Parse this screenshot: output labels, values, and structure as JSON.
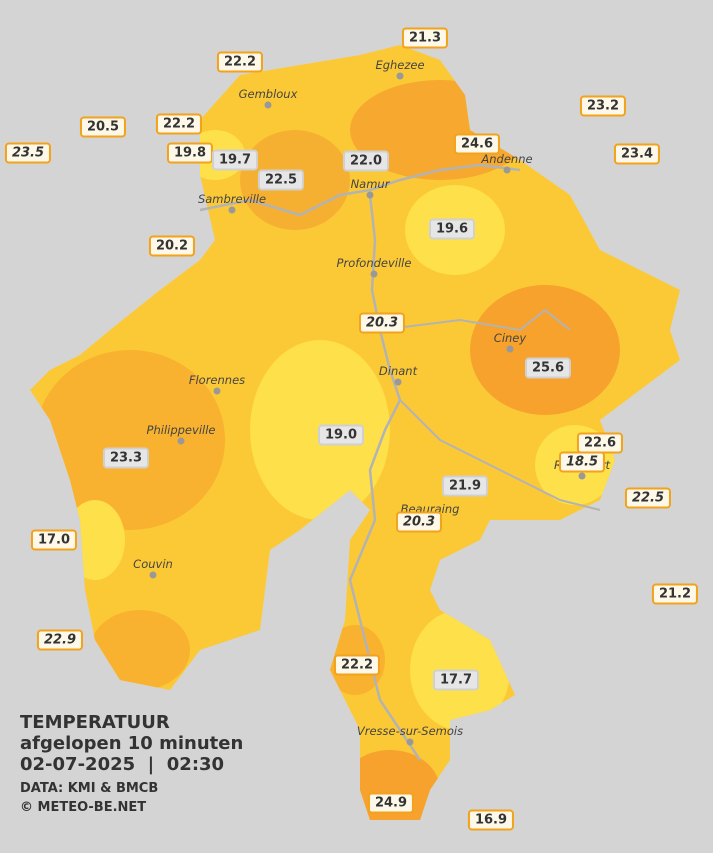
{
  "towns": [
    "Eghezee",
    "Gembloux",
    "Andenne",
    "Namur",
    "Sambreville",
    "Profondeville",
    "Ciney",
    "Dinant",
    "Florennes",
    "Philippeville",
    "Rochefort",
    "Beauraing",
    "Couvin",
    "Vresse-sur-Semois"
  ],
  "stations": [
    {
      "value": "21.3",
      "italic": false
    },
    {
      "value": "22.2",
      "italic": false
    },
    {
      "value": "20.5",
      "italic": false
    },
    {
      "value": "22.2",
      "italic": false
    },
    {
      "value": "23.2",
      "italic": false
    },
    {
      "value": "23.5",
      "italic": true
    },
    {
      "value": "19.8",
      "italic": false
    },
    {
      "value": "19.7",
      "italic": false
    },
    {
      "value": "24.6",
      "italic": false
    },
    {
      "value": "22.0",
      "italic": false
    },
    {
      "value": "23.4",
      "italic": false
    },
    {
      "value": "22.5",
      "italic": false
    },
    {
      "value": "20.2",
      "italic": false
    },
    {
      "value": "19.6",
      "italic": false
    },
    {
      "value": "20.3",
      "italic": true
    },
    {
      "value": "25.6",
      "italic": false
    },
    {
      "value": "19.0",
      "italic": false
    },
    {
      "value": "22.6",
      "italic": false
    },
    {
      "value": "23.3",
      "italic": false
    },
    {
      "value": "18.5",
      "italic": true
    },
    {
      "value": "21.9",
      "italic": false
    },
    {
      "value": "22.5",
      "italic": true
    },
    {
      "value": "20.3",
      "italic": true
    },
    {
      "value": "17.0",
      "italic": false
    },
    {
      "value": "21.2",
      "italic": false
    },
    {
      "value": "22.9",
      "italic": true
    },
    {
      "value": "22.2",
      "italic": false
    },
    {
      "value": "17.7",
      "italic": false
    },
    {
      "value": "24.9",
      "italic": false
    },
    {
      "value": "16.9",
      "italic": false
    }
  ],
  "legend": {
    "title": "TEMPERATUUR",
    "subtitle": "afgelopen 10 minuten",
    "datetime": "02-07-2025  |  02:30",
    "source": "DATA: KMI & BMCB",
    "site": "© METEO-BE.NET"
  }
}
